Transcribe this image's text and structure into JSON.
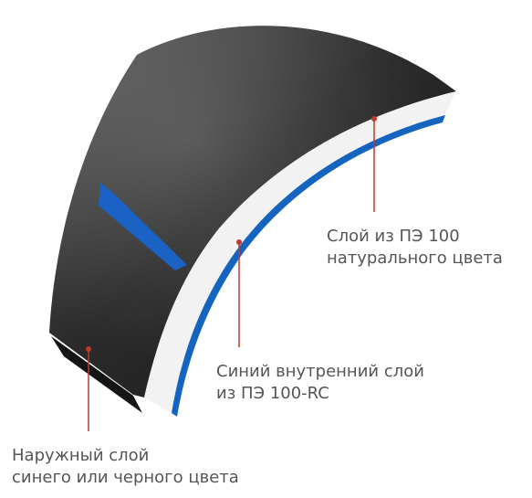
{
  "colors": {
    "outer_layer": "#2b2b2b",
    "outer_layer_highlight": "#5c5c5c",
    "side_face": "#151515",
    "natural_layer": "#f2f2f2",
    "blue_layer": "#1565c0",
    "blue_stripe": "#1a63c4",
    "callout_line": "#c0392b",
    "callout_text": "#555555"
  },
  "callouts": {
    "natural_layer": {
      "line1": "Слой из ПЭ 100",
      "line2": "натурального цвета"
    },
    "blue_inner_layer": {
      "line1": "Синий внутренний слой",
      "line2": "из ПЭ 100-RC"
    },
    "outer_layer": {
      "line1": "Наружный слой",
      "line2": "синего или черного цвета"
    }
  }
}
